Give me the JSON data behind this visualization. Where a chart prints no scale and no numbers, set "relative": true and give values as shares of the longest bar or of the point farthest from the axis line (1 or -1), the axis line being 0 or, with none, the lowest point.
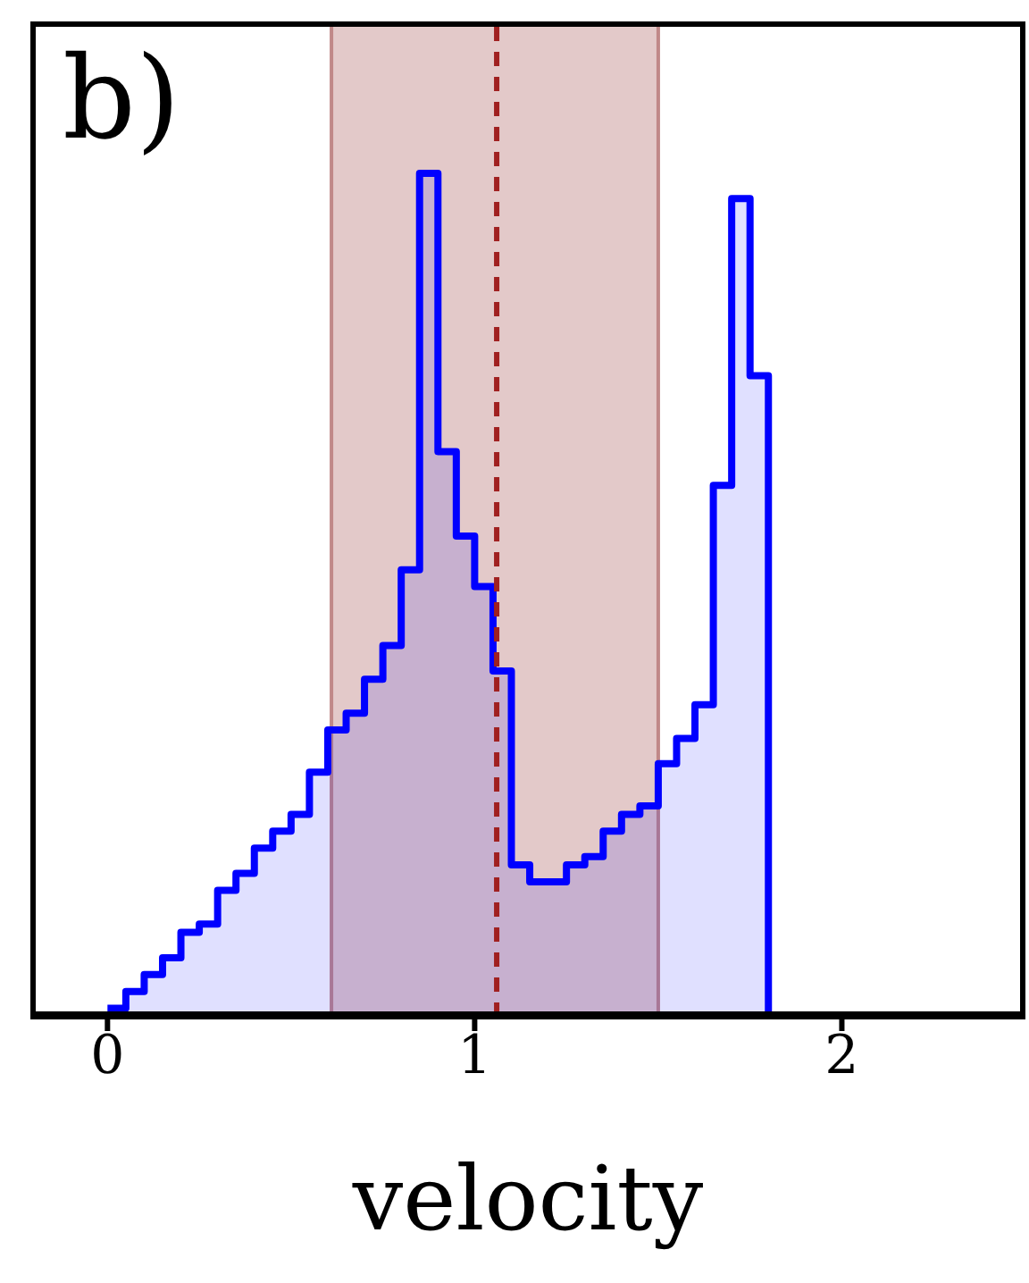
{
  "chart_data": {
    "type": "step",
    "relative": true,
    "xlabel": "velocity",
    "annotations": [
      "b)"
    ],
    "x": [
      0,
      0.05,
      0.1,
      0.15,
      0.2,
      0.25,
      0.3,
      0.35,
      0.4,
      0.45,
      0.5,
      0.55,
      0.6,
      0.65,
      0.7,
      0.75,
      0.8,
      0.85,
      0.9,
      0.95,
      1.0,
      1.05,
      1.1,
      1.15,
      1.2,
      1.25,
      1.3,
      1.35,
      1.4,
      1.45,
      1.5,
      1.55,
      1.6,
      1.65,
      1.7,
      1.75,
      1.8
    ],
    "values": [
      0.01,
      0.03,
      0.05,
      0.07,
      0.1,
      0.11,
      0.15,
      0.17,
      0.2,
      0.22,
      0.24,
      0.29,
      0.34,
      0.36,
      0.4,
      0.44,
      0.53,
      1.0,
      0.67,
      0.57,
      0.51,
      0.41,
      0.18,
      0.16,
      0.16,
      0.18,
      0.19,
      0.22,
      0.24,
      0.25,
      0.3,
      0.33,
      0.37,
      0.63,
      0.97,
      0.76,
      0
    ],
    "color": "#0000ff",
    "xlim": [
      -0.21,
      2.5
    ],
    "xticks": [
      0,
      1,
      2
    ],
    "tick_labels": "x",
    "bands": [
      {
        "axis": "x",
        "from": 0.61,
        "to": 1.5,
        "color": "#c08888"
      }
    ],
    "ref_lines": [
      {
        "axis": "x",
        "value": 1.06,
        "color": "#a02020",
        "line_style": "dashed"
      }
    ]
  }
}
